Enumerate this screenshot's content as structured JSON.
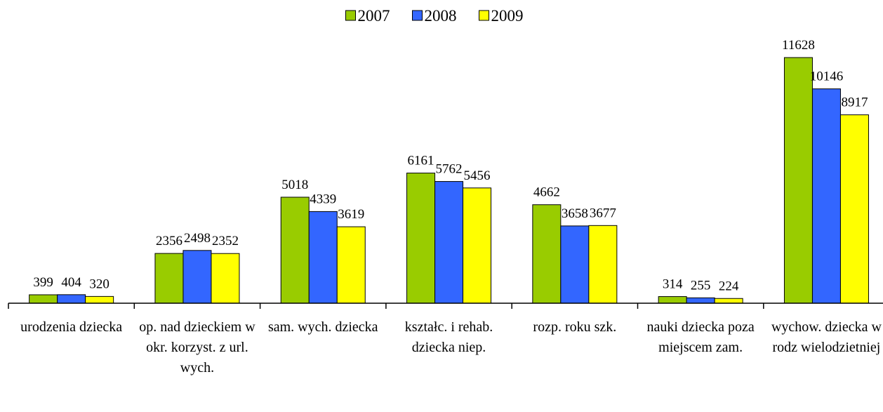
{
  "chart_data": {
    "type": "bar",
    "categories": [
      "urodzenia dziecka",
      "op. nad dzieckiem w okr. korzyst. z url. wych.",
      "sam. wych. dziecka",
      "kształc. i rehab. dziecka niep.",
      "rozp. roku szk.",
      "nauki dziecka poza miejscem zam.",
      "wychow. dziecka w rodz wielodzietniej"
    ],
    "series": [
      {
        "name": "2007",
        "color": "#99cc00",
        "values": [
          399,
          2356,
          5018,
          6161,
          4662,
          314,
          11628
        ]
      },
      {
        "name": "2008",
        "color": "#3366ff",
        "values": [
          404,
          2498,
          4339,
          5762,
          3658,
          255,
          10146
        ]
      },
      {
        "name": "2009",
        "color": "#ffff00",
        "values": [
          320,
          2352,
          3619,
          5456,
          3677,
          224,
          8917
        ]
      }
    ],
    "legend": "top"
  }
}
